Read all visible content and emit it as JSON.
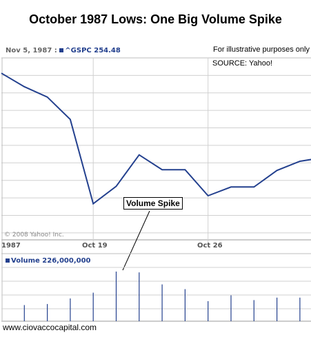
{
  "title": "October 1987 Lows:  One Big Volume Spike",
  "header": {
    "date": "Nov 5, 1987 :",
    "symbol": "^GSPC",
    "value": "254.48"
  },
  "notes": {
    "illustrative": "For illustrative purposes only",
    "source": "SOURCE: Yahoo!"
  },
  "copyright": "© 2008 Yahoo! Inc.",
  "footer": "www.ciovaccocapital.com",
  "colors": {
    "line": "#23408e",
    "grid": "#d0d0d0"
  },
  "chart_data": [
    {
      "type": "line",
      "title": "October 1987 Lows:  One Big Volume Spike",
      "series": [
        {
          "name": "^GSPC",
          "values": [
            314.5,
            305.2,
            298.1,
            282.7,
            224.8,
            236.8,
            258.4,
            248.2,
            248.2,
            230.3,
            236.3,
            236.3,
            247.7,
            254.0,
            256.5
          ]
        }
      ],
      "x_ticks": [
        "1987",
        "Oct 19",
        "Oct 26"
      ],
      "ylim": [
        200,
        325
      ],
      "grid": true,
      "annotation": "Volume Spike"
    },
    {
      "type": "bar",
      "label": "Volume",
      "value_label": "226,000,000",
      "series": [
        {
          "name": "Volume",
          "values": [
            78,
            83,
            110,
            138,
            240,
            236,
            178,
            155,
            97,
            125,
            102,
            114,
            114,
            125
          ]
        }
      ],
      "ylim": [
        0,
        300
      ],
      "grid": true
    }
  ]
}
